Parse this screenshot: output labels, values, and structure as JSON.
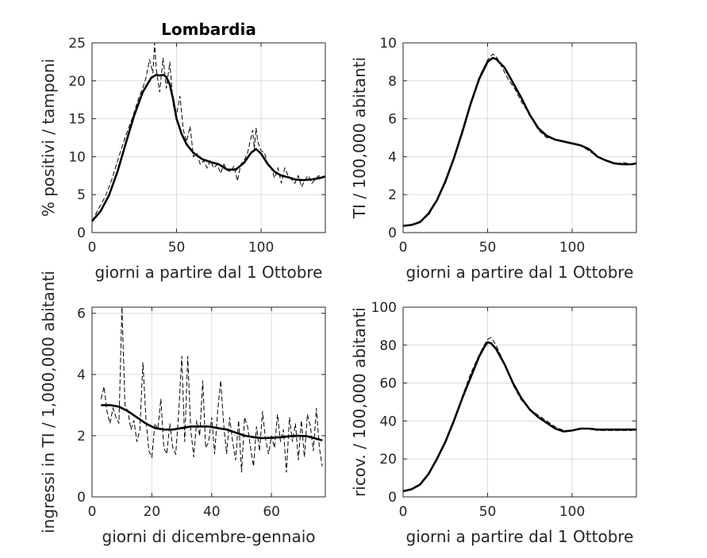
{
  "chart_data": [
    {
      "type": "line",
      "title": "Lombardia",
      "xlabel": "giorni a partire dal 1 Ottobre",
      "ylabel": "% positivi / tamponi",
      "xlim": [
        0,
        138
      ],
      "ylim": [
        0,
        25
      ],
      "xticks": [
        0,
        50,
        100
      ],
      "yticks": [
        0,
        5,
        10,
        15,
        20,
        25
      ],
      "grid": true,
      "series": [
        {
          "style": "dashed",
          "x": [
            0,
            4,
            8,
            12,
            16,
            20,
            24,
            28,
            30,
            32,
            34,
            36,
            37,
            38,
            40,
            42,
            44,
            46,
            48,
            50,
            52,
            54,
            56,
            58,
            60,
            62,
            64,
            66,
            68,
            70,
            72,
            74,
            76,
            78,
            80,
            82,
            84,
            86,
            88,
            90,
            92,
            94,
            95,
            96,
            97,
            98,
            100,
            102,
            104,
            106,
            108,
            110,
            112,
            114,
            116,
            118,
            120,
            122,
            124,
            126,
            128,
            130,
            132,
            134,
            136,
            138
          ],
          "y": [
            1.5,
            3.2,
            4.8,
            7.2,
            10.1,
            12.8,
            15.2,
            18.0,
            19.0,
            20.5,
            22.8,
            21.0,
            25.0,
            21.5,
            18.5,
            23.0,
            19.0,
            22.5,
            16.8,
            15.5,
            18.0,
            13.5,
            12.0,
            14.0,
            10.0,
            10.5,
            9.0,
            9.5,
            8.5,
            9.5,
            8.5,
            9.0,
            7.8,
            9.0,
            8.2,
            8.0,
            8.8,
            6.8,
            9.0,
            9.5,
            10.5,
            12.5,
            13.5,
            11.0,
            13.8,
            12.0,
            10.8,
            10.5,
            9.0,
            8.5,
            7.2,
            8.5,
            6.5,
            8.5,
            7.5,
            7.0,
            6.5,
            7.5,
            6.0,
            7.0,
            7.5,
            6.5,
            7.0,
            7.5,
            7.2,
            7.5
          ]
        },
        {
          "style": "solid",
          "x": [
            0,
            5,
            10,
            15,
            20,
            25,
            30,
            35,
            38,
            40,
            42,
            44,
            46,
            48,
            50,
            53,
            56,
            60,
            65,
            70,
            75,
            80,
            85,
            90,
            94,
            97,
            100,
            104,
            108,
            112,
            116,
            120,
            125,
            130,
            135,
            138
          ],
          "y": [
            1.5,
            2.8,
            4.9,
            8.0,
            11.8,
            15.5,
            18.5,
            20.4,
            20.8,
            20.7,
            20.8,
            20.5,
            19.5,
            17.5,
            15.0,
            13.0,
            11.6,
            10.5,
            9.7,
            9.3,
            9.0,
            8.3,
            8.3,
            9.2,
            10.5,
            11.0,
            10.4,
            9.0,
            8.0,
            7.5,
            7.3,
            7.0,
            6.9,
            7.0,
            7.2,
            7.4
          ]
        }
      ]
    },
    {
      "type": "line",
      "xlabel": "giorni a partire dal 1 Ottobre",
      "ylabel": "TI / 100,000 abitanti",
      "xlim": [
        0,
        138
      ],
      "ylim": [
        0,
        10
      ],
      "xticks": [
        0,
        50,
        100
      ],
      "yticks": [
        0,
        2,
        4,
        6,
        8,
        10
      ],
      "grid": true,
      "series": [
        {
          "style": "dashed",
          "x": [
            0,
            5,
            10,
            15,
            20,
            25,
            30,
            35,
            40,
            45,
            50,
            53,
            55,
            58,
            62,
            66,
            70,
            75,
            80,
            85,
            90,
            95,
            100,
            105,
            110,
            115,
            120,
            125,
            130,
            135,
            138
          ],
          "y": [
            0.35,
            0.4,
            0.6,
            0.9,
            1.7,
            2.6,
            3.9,
            5.2,
            6.8,
            8.2,
            9.1,
            9.4,
            9.3,
            8.8,
            8.1,
            7.6,
            6.9,
            6.2,
            5.4,
            5.0,
            4.9,
            4.8,
            4.7,
            4.6,
            4.3,
            4.0,
            3.8,
            3.6,
            3.7,
            3.6,
            3.65
          ]
        },
        {
          "style": "solid",
          "x": [
            0,
            5,
            10,
            15,
            20,
            25,
            30,
            35,
            40,
            45,
            50,
            53,
            55,
            60,
            65,
            70,
            75,
            80,
            85,
            90,
            95,
            100,
            105,
            110,
            115,
            120,
            125,
            130,
            135,
            138
          ],
          "y": [
            0.35,
            0.4,
            0.55,
            1.0,
            1.7,
            2.7,
            3.9,
            5.3,
            6.8,
            8.1,
            9.0,
            9.2,
            9.15,
            8.7,
            7.9,
            7.1,
            6.2,
            5.5,
            5.1,
            4.9,
            4.8,
            4.7,
            4.6,
            4.4,
            4.0,
            3.8,
            3.65,
            3.6,
            3.6,
            3.65
          ]
        }
      ]
    },
    {
      "type": "line",
      "xlabel": "giorni di dicembre-gennaio",
      "ylabel": "ingressi in TI / 1,000,000 abitanti",
      "xlim": [
        0,
        78
      ],
      "ylim": [
        0,
        6.2
      ],
      "xticks": [
        0,
        20,
        40,
        60
      ],
      "yticks": [
        0,
        2,
        4,
        6
      ],
      "grid": true,
      "series": [
        {
          "style": "dashed",
          "x": [
            3,
            4,
            5,
            6,
            7,
            8,
            9,
            10,
            11,
            12,
            13,
            14,
            15,
            16,
            17,
            18,
            19,
            20,
            21,
            22,
            23,
            24,
            25,
            26,
            27,
            28,
            29,
            30,
            31,
            32,
            33,
            34,
            35,
            36,
            37,
            38,
            39,
            40,
            41,
            42,
            43,
            44,
            45,
            46,
            47,
            48,
            49,
            50,
            51,
            52,
            53,
            54,
            55,
            56,
            57,
            58,
            59,
            60,
            61,
            62,
            63,
            64,
            65,
            66,
            67,
            68,
            69,
            70,
            71,
            72,
            73,
            74,
            75,
            76,
            77
          ],
          "y": [
            3.2,
            3.6,
            2.8,
            2.4,
            2.9,
            2.6,
            2.4,
            6.2,
            3.0,
            2.8,
            2.2,
            2.5,
            1.8,
            2.2,
            4.4,
            2.6,
            1.5,
            1.3,
            2.4,
            2.2,
            3.2,
            1.6,
            1.4,
            2.4,
            1.6,
            1.4,
            2.8,
            4.6,
            1.8,
            4.6,
            2.2,
            1.3,
            2.5,
            2.0,
            3.8,
            1.6,
            1.8,
            2.6,
            1.4,
            2.8,
            3.8,
            2.4,
            1.4,
            2.6,
            1.8,
            1.2,
            2.5,
            0.8,
            2.6,
            2.3,
            1.6,
            1.0,
            2.3,
            1.5,
            2.8,
            1.9,
            1.4,
            2.0,
            1.6,
            2.7,
            1.8,
            2.2,
            0.8,
            2.6,
            1.8,
            2.4,
            1.2,
            2.5,
            1.3,
            2.7,
            2.3,
            1.5,
            2.9,
            1.6,
            1.0
          ]
        },
        {
          "style": "solid",
          "x": [
            3,
            6,
            9,
            12,
            15,
            18,
            21,
            24,
            27,
            30,
            33,
            36,
            39,
            42,
            45,
            48,
            51,
            54,
            57,
            60,
            63,
            66,
            69,
            72,
            75,
            77
          ],
          "y": [
            3.0,
            3.0,
            2.95,
            2.8,
            2.6,
            2.4,
            2.25,
            2.2,
            2.2,
            2.25,
            2.3,
            2.3,
            2.3,
            2.25,
            2.2,
            2.1,
            2.0,
            1.95,
            1.92,
            1.93,
            1.95,
            1.98,
            2.0,
            1.98,
            1.9,
            1.85
          ]
        }
      ]
    },
    {
      "type": "line",
      "xlabel": "giorni a partire dal 1 Ottobre",
      "ylabel": "ricov. / 100,000 abitanti",
      "xlim": [
        0,
        138
      ],
      "ylim": [
        0,
        100
      ],
      "xticks": [
        0,
        50,
        100
      ],
      "yticks": [
        0,
        20,
        40,
        60,
        80,
        100
      ],
      "grid": true,
      "series": [
        {
          "style": "dashed",
          "x": [
            0,
            5,
            10,
            15,
            20,
            25,
            30,
            35,
            40,
            45,
            48,
            50,
            52,
            55,
            60,
            65,
            70,
            75,
            80,
            85,
            90,
            95,
            100,
            105,
            110,
            115,
            120,
            125,
            130,
            135,
            138
          ],
          "y": [
            3,
            4,
            7,
            12,
            20,
            29,
            39,
            53,
            65,
            75,
            80,
            83,
            84,
            80,
            70,
            59,
            51,
            46,
            43,
            40,
            37,
            35,
            35,
            36,
            36,
            35,
            35,
            35,
            35,
            35,
            35.5
          ]
        },
        {
          "style": "solid",
          "x": [
            0,
            5,
            10,
            15,
            20,
            25,
            30,
            35,
            40,
            45,
            48,
            50,
            52,
            55,
            60,
            65,
            70,
            75,
            80,
            85,
            90,
            95,
            100,
            105,
            110,
            115,
            120,
            125,
            130,
            135,
            138
          ],
          "y": [
            3,
            4,
            6.5,
            12,
            20,
            29,
            40,
            52,
            63,
            74,
            79,
            81.5,
            81,
            78,
            70,
            60,
            52,
            46,
            42,
            39,
            36,
            34.5,
            35,
            36,
            36,
            35.5,
            35.5,
            35.5,
            35.5,
            35.5,
            35.5
          ]
        }
      ]
    }
  ]
}
